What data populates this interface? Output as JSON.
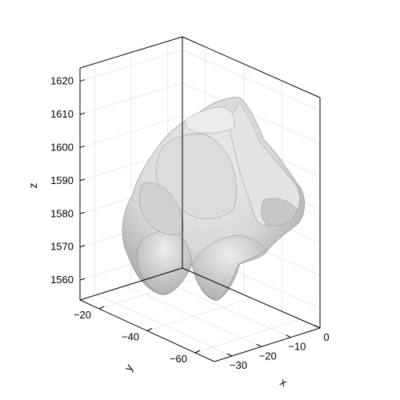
{
  "chart_data": {
    "type": "surface",
    "title": "",
    "xlabel": "x",
    "ylabel": "y",
    "zlabel": "z",
    "x_ticks": [
      -30,
      -20,
      -10,
      0
    ],
    "y_ticks": [
      -20,
      -40,
      -60
    ],
    "z_ticks": [
      1560,
      1570,
      1580,
      1590,
      1600,
      1610,
      1620
    ],
    "x_tick_labels": [
      "−30",
      "−20",
      "−10",
      "0"
    ],
    "y_tick_labels": [
      "−20",
      "−40",
      "−60"
    ],
    "z_tick_labels": [
      "1560",
      "1570",
      "1580",
      "1590",
      "1600",
      "1610",
      "1620"
    ],
    "xlim": [
      -36,
      0
    ],
    "ylim": [
      -12,
      -68
    ],
    "zlim": [
      1554,
      1624
    ],
    "grid": true,
    "legend": "none",
    "surface_color": "#cfcfcf",
    "object": "irregular 3D mesh surface (grey shaded)"
  }
}
